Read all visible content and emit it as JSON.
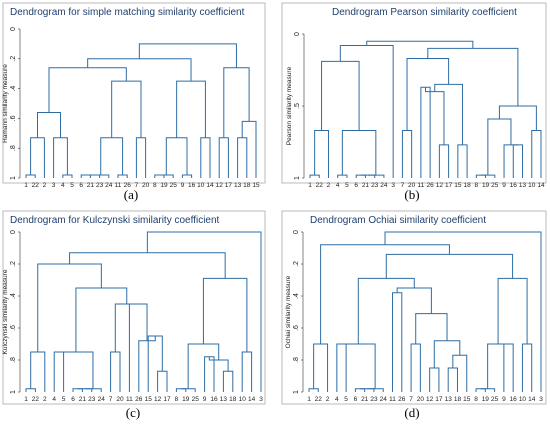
{
  "figure": {
    "panels": [
      {
        "label": "(a)"
      },
      {
        "label": "(b)"
      },
      {
        "label": "(c)"
      },
      {
        "label": "(d)"
      }
    ]
  },
  "chart_data": [
    {
      "type": "dendrogram",
      "title": "Dendrogram for simple matching similarity coefficient",
      "ylabel": "Hamann similarity measure",
      "yticks": [
        "0",
        ".2",
        ".4",
        ".6",
        ".8",
        "1"
      ],
      "ylim": [
        1,
        0
      ],
      "leaves": [
        "1",
        "22",
        "2",
        "3",
        "4",
        "5",
        "6",
        "21",
        "23",
        "24",
        "11",
        "26",
        "7",
        "20",
        "8",
        "19",
        "25",
        "9",
        "16",
        "10",
        "14",
        "12",
        "17",
        "13",
        "18",
        "15"
      ],
      "merges": [
        {
          "left": "1",
          "right": "22",
          "height": 0.98
        },
        {
          "left": "4",
          "right": "5",
          "height": 0.98
        },
        {
          "left": "6",
          "right": "21",
          "height": 0.98
        },
        {
          "left": "6+21",
          "right": "23",
          "height": 0.98
        },
        {
          "left": "6+21+23",
          "right": "24",
          "height": 0.98
        },
        {
          "left": "11",
          "right": "26",
          "height": 0.98
        },
        {
          "left": "8",
          "right": "19",
          "height": 0.98
        },
        {
          "left": "8+19",
          "right": "25",
          "height": 0.98
        },
        {
          "left": "9",
          "right": "16",
          "height": 0.98
        },
        {
          "left": "1+22",
          "right": "2",
          "height": 0.73
        },
        {
          "left": "3",
          "right": "4+5",
          "height": 0.73
        },
        {
          "left": "6+21+23+24",
          "right": "11+26",
          "height": 0.73
        },
        {
          "left": "7",
          "right": "20",
          "height": 0.73
        },
        {
          "left": "8+19+25",
          "right": "9+16",
          "height": 0.73
        },
        {
          "left": "10",
          "right": "14",
          "height": 0.73
        },
        {
          "left": "12",
          "right": "17",
          "height": 0.73
        },
        {
          "left": "13",
          "right": "18",
          "height": 0.73
        },
        {
          "left": "13+18",
          "right": "15",
          "height": 0.62
        },
        {
          "left": "1+22+2",
          "right": "3+4+5",
          "height": 0.56
        },
        {
          "left": "8-16",
          "right": "10+14",
          "height": 0.35
        },
        {
          "left": "12+17",
          "right": "13+18+15",
          "height": 0.26
        },
        {
          "left": "6-26",
          "right": "7+20",
          "height": 0.35
        },
        {
          "left": "1-5",
          "right": "6-20",
          "height": 0.26
        },
        {
          "left": "1-20",
          "right": "8-14",
          "height": 0.2
        },
        {
          "left": "1-14",
          "right": "12-15",
          "height": 0.1
        }
      ]
    },
    {
      "type": "dendrogram",
      "title": "Dendrogram Pearson similarity coefficient",
      "ylabel": "Pearson similarity measure",
      "yticks": [
        "0",
        ".5",
        "1"
      ],
      "ylim": [
        1,
        0
      ],
      "leaves": [
        "1",
        "22",
        "2",
        "4",
        "5",
        "6",
        "21",
        "23",
        "24",
        "3",
        "7",
        "20",
        "11",
        "26",
        "12",
        "17",
        "15",
        "18",
        "8",
        "19",
        "25",
        "9",
        "16",
        "13",
        "10",
        "14"
      ],
      "merges": [
        {
          "left": "1",
          "right": "22",
          "height": 0.98
        },
        {
          "left": "4",
          "right": "5",
          "height": 0.98
        },
        {
          "left": "6",
          "right": "21",
          "height": 0.98
        },
        {
          "left": "6+21",
          "right": "23",
          "height": 0.98
        },
        {
          "left": "6+21+23",
          "right": "24",
          "height": 0.98
        },
        {
          "left": "8",
          "right": "19",
          "height": 0.98
        },
        {
          "left": "8+19",
          "right": "25",
          "height": 0.98
        },
        {
          "left": "1+22",
          "right": "2",
          "height": 0.67
        },
        {
          "left": "4+5",
          "right": "6+21+23+24",
          "height": 0.67
        },
        {
          "left": "7",
          "right": "20",
          "height": 0.67
        },
        {
          "left": "16",
          "right": "13",
          "height": 0.77
        },
        {
          "left": "10",
          "right": "14",
          "height": 0.67
        },
        {
          "left": "12",
          "right": "17",
          "height": 0.77
        },
        {
          "left": "15",
          "right": "18",
          "height": 0.77
        },
        {
          "left": "9",
          "right": "16+13",
          "height": 0.77
        },
        {
          "left": "11",
          "right": "26",
          "height": 0.37
        },
        {
          "left": "11+26",
          "right": "12+17",
          "height": 0.4
        },
        {
          "left": "11-17",
          "right": "15+18",
          "height": 0.35
        },
        {
          "left": "8+19+25",
          "right": "9-13",
          "height": 0.59
        },
        {
          "left": "8-13",
          "right": "10+14",
          "height": 0.5
        },
        {
          "left": "1-2",
          "right": "4-24",
          "height": 0.19
        },
        {
          "left": "7+20",
          "right": "11-18",
          "height": 0.17
        },
        {
          "left": "1-24",
          "right": "3",
          "height": 0.08
        },
        {
          "left": "7-18",
          "right": "8-14",
          "height": 0.1
        },
        {
          "left": "1-3",
          "right": "7-14",
          "height": 0.05
        }
      ]
    },
    {
      "type": "dendrogram",
      "title": "Dendrogram for Kulczynski similarity coefficient",
      "ylabel": "Kulczynski similarity measure",
      "yticks": [
        "0",
        ".2",
        ".4",
        ".6",
        ".8",
        "1"
      ],
      "ylim": [
        1,
        0
      ],
      "leaves": [
        "1",
        "22",
        "2",
        "4",
        "5",
        "6",
        "21",
        "23",
        "24",
        "7",
        "20",
        "11",
        "26",
        "15",
        "12",
        "17",
        "8",
        "19",
        "25",
        "9",
        "16",
        "13",
        "18",
        "10",
        "14",
        "3"
      ],
      "merges": [
        {
          "left": "1",
          "right": "22",
          "height": 0.98
        },
        {
          "left": "6",
          "right": "21",
          "height": 0.98
        },
        {
          "left": "6+21",
          "right": "23",
          "height": 0.98
        },
        {
          "left": "6+21+23",
          "right": "24",
          "height": 0.98
        },
        {
          "left": "8",
          "right": "19",
          "height": 0.98
        },
        {
          "left": "8+19",
          "right": "25",
          "height": 0.98
        },
        {
          "left": "12",
          "right": "17",
          "height": 0.87
        },
        {
          "left": "13",
          "right": "18",
          "height": 0.87
        },
        {
          "left": "15",
          "right": "12+17",
          "height": 0.65
        },
        {
          "left": "26",
          "right": "15-17",
          "height": 0.68
        },
        {
          "left": "11",
          "right": "26-17",
          "height": 0.45
        },
        {
          "left": "7",
          "right": "20",
          "height": 0.75
        },
        {
          "left": "1+22",
          "right": "2",
          "height": 0.75
        },
        {
          "left": "4",
          "right": "5",
          "height": 0.75
        },
        {
          "left": "4+5",
          "right": "6-24",
          "height": 0.75
        },
        {
          "left": "9",
          "right": "16",
          "height": 0.78
        },
        {
          "left": "9+16",
          "right": "13+18",
          "height": 0.8
        },
        {
          "left": "8+19+25",
          "right": "9-18",
          "height": 0.7
        },
        {
          "left": "10",
          "right": "14",
          "height": 0.75
        },
        {
          "left": "8-18",
          "right": "10+14",
          "height": 0.29
        },
        {
          "left": "7+20",
          "right": "11-17",
          "height": 0.45
        },
        {
          "left": "4-24",
          "right": "7-17",
          "height": 0.35
        },
        {
          "left": "1-2",
          "right": "4-17",
          "height": 0.2
        },
        {
          "left": "1-17",
          "right": "8-14",
          "height": 0.13
        },
        {
          "left": "1-14",
          "right": "3",
          "height": 0.0
        }
      ]
    },
    {
      "type": "dendrogram",
      "title": "Dendrogram Ochiai similarity coefficient",
      "ylabel": "Ochiai similarity measure",
      "yticks": [
        "0",
        ".2",
        ".4",
        ".6",
        ".8",
        "1"
      ],
      "ylim": [
        1,
        0
      ],
      "leaves": [
        "1",
        "22",
        "2",
        "4",
        "5",
        "6",
        "21",
        "23",
        "24",
        "11",
        "26",
        "7",
        "20",
        "12",
        "17",
        "13",
        "18",
        "15",
        "8",
        "19",
        "25",
        "9",
        "16",
        "10",
        "14",
        "3"
      ],
      "merges": [
        {
          "left": "1",
          "right": "22",
          "height": 0.98
        },
        {
          "left": "6",
          "right": "21",
          "height": 0.98
        },
        {
          "left": "6+21",
          "right": "23",
          "height": 0.98
        },
        {
          "left": "6+21+23",
          "right": "24",
          "height": 0.98
        },
        {
          "left": "8",
          "right": "19",
          "height": 0.98
        },
        {
          "left": "8+19",
          "right": "25",
          "height": 0.98
        },
        {
          "left": "12",
          "right": "17",
          "height": 0.85
        },
        {
          "left": "13",
          "right": "18",
          "height": 0.85
        },
        {
          "left": "13+18",
          "right": "15",
          "height": 0.77
        },
        {
          "left": "12+17",
          "right": "13-15",
          "height": 0.68
        },
        {
          "left": "7",
          "right": "20",
          "height": 0.7
        },
        {
          "left": "1+22",
          "right": "2",
          "height": 0.7
        },
        {
          "left": "4",
          "right": "5",
          "height": 0.7
        },
        {
          "left": "4+5",
          "right": "6-24",
          "height": 0.7
        },
        {
          "left": "9",
          "right": "16",
          "height": 0.7
        },
        {
          "left": "8+19+25",
          "right": "9+16",
          "height": 0.7
        },
        {
          "left": "10",
          "right": "14",
          "height": 0.7
        },
        {
          "left": "11",
          "right": "26",
          "height": 0.38
        },
        {
          "left": "7+20",
          "right": "12-15",
          "height": 0.51
        },
        {
          "left": "11+26",
          "right": "7-15",
          "height": 0.35
        },
        {
          "left": "4-24",
          "right": "11-15",
          "height": 0.29
        },
        {
          "left": "8-16",
          "right": "10+14",
          "height": 0.29
        },
        {
          "left": "4-15",
          "right": "8-14",
          "height": 0.14
        },
        {
          "left": "1-2",
          "right": "4-14",
          "height": 0.08
        },
        {
          "left": "1-14",
          "right": "3",
          "height": 0.0
        }
      ]
    }
  ]
}
